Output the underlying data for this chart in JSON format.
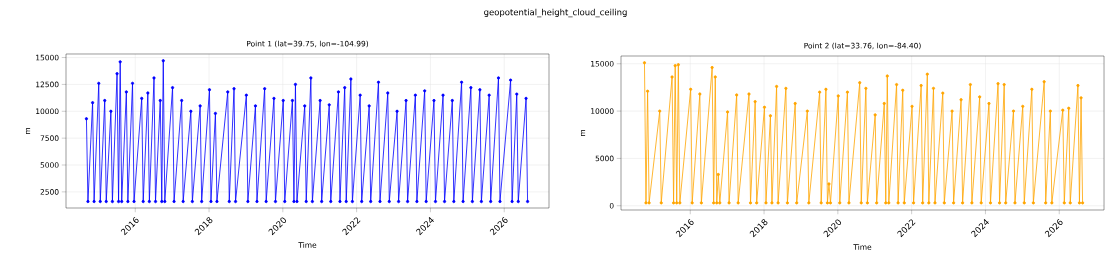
{
  "chart_data": [
    {
      "type": "line",
      "title": "Point 1 (lat=39.75, lon=-104.99)",
      "xlabel": "Time",
      "ylabel": "m",
      "annotations": [
        "geopotential_height_cloud_ceiling"
      ],
      "marker": "circle",
      "grid": true,
      "xlim": [
        "2014-02-15",
        "2027-03-20"
      ],
      "xticks": [
        "2016",
        "2018",
        "2020",
        "2022",
        "2024",
        "2026"
      ],
      "ylim": [
        1000,
        15330
      ],
      "yticks": [
        2500,
        5000,
        7500,
        10000,
        12500,
        15000
      ],
      "series": [
        {
          "color": "#0000ff",
          "x": [
            "2014-09-05",
            "2014-09-20",
            "2014-11-05",
            "2014-11-20",
            "2015-01-05",
            "2015-01-20",
            "2015-03-05",
            "2015-03-20",
            "2015-05-05",
            "2015-05-20",
            "2015-07-05",
            "2015-07-20",
            "2015-08-05",
            "2015-08-20",
            "2015-10-05",
            "2015-10-20",
            "2015-12-05",
            "2015-12-20",
            "2016-03-05",
            "2016-03-20",
            "2016-05-05",
            "2016-05-20",
            "2016-07-05",
            "2016-07-20",
            "2016-09-05",
            "2016-09-20",
            "2016-10-05",
            "2016-10-20",
            "2017-01-05",
            "2017-01-20",
            "2017-04-05",
            "2017-04-20",
            "2017-07-05",
            "2017-07-20",
            "2017-10-05",
            "2017-10-20",
            "2018-01-05",
            "2018-01-20",
            "2018-03-05",
            "2018-03-20",
            "2018-07-05",
            "2018-07-20",
            "2018-09-05",
            "2018-09-20",
            "2019-01-05",
            "2019-01-20",
            "2019-04-05",
            "2019-04-20",
            "2019-07-05",
            "2019-07-20",
            "2019-10-05",
            "2019-10-20",
            "2020-01-05",
            "2020-01-20",
            "2020-04-05",
            "2020-04-20",
            "2020-05-05",
            "2020-05-20",
            "2020-08-05",
            "2020-08-20",
            "2020-10-05",
            "2020-10-20",
            "2021-01-05",
            "2021-01-20",
            "2021-04-05",
            "2021-04-20",
            "2021-07-05",
            "2021-07-20",
            "2021-09-05",
            "2021-09-20",
            "2021-11-05",
            "2021-11-20",
            "2022-02-05",
            "2022-02-20",
            "2022-05-05",
            "2022-05-20",
            "2022-08-05",
            "2022-08-20",
            "2022-11-05",
            "2022-11-20",
            "2023-02-05",
            "2023-02-20",
            "2023-05-05",
            "2023-05-20",
            "2023-08-05",
            "2023-08-20",
            "2023-11-05",
            "2023-11-20",
            "2024-02-05",
            "2024-02-20",
            "2024-05-05",
            "2024-05-20",
            "2024-08-05",
            "2024-08-20",
            "2024-11-05",
            "2024-11-20",
            "2025-02-05",
            "2025-02-20",
            "2025-05-05",
            "2025-05-20",
            "2025-08-05",
            "2025-08-20",
            "2025-11-05",
            "2025-11-20",
            "2026-03-05",
            "2026-03-20",
            "2026-05-05",
            "2026-05-20",
            "2026-08-05",
            "2026-08-20"
          ],
          "values": [
            9300,
            1600,
            10800,
            1600,
            12600,
            1600,
            11000,
            1600,
            10000,
            1600,
            13500,
            1600,
            14600,
            1600,
            11800,
            1600,
            12600,
            1600,
            11200,
            1600,
            11700,
            1600,
            13100,
            1600,
            11000,
            1600,
            14700,
            1600,
            12200,
            1600,
            11000,
            1600,
            10000,
            1600,
            10500,
            1600,
            12000,
            1600,
            9800,
            1600,
            11800,
            1600,
            12100,
            1600,
            11500,
            1600,
            10500,
            1600,
            12100,
            1600,
            11200,
            1600,
            11000,
            1600,
            11000,
            1600,
            12500,
            1600,
            10500,
            1600,
            13100,
            1600,
            11000,
            1600,
            10600,
            1600,
            11800,
            1600,
            12200,
            1600,
            13000,
            1600,
            11500,
            1600,
            10500,
            1600,
            12700,
            1600,
            11700,
            1600,
            10000,
            1600,
            11000,
            1600,
            11500,
            1600,
            11900,
            1600,
            11000,
            1600,
            11500,
            1600,
            11000,
            1600,
            12700,
            1600,
            12200,
            1600,
            12000,
            1600,
            11500,
            1600,
            13100,
            1600,
            12900,
            1600,
            11600,
            1600,
            11200,
            1600
          ]
        }
      ]
    },
    {
      "type": "line",
      "title": "Point 2 (lat=33.76, lon=-84.40)",
      "xlabel": "Time",
      "ylabel": "m",
      "marker": "circle",
      "grid": true,
      "xlim": [
        "2014-02-15",
        "2027-03-20"
      ],
      "xticks": [
        "2016",
        "2018",
        "2020",
        "2022",
        "2024",
        "2026"
      ],
      "ylim": [
        -450,
        15820
      ],
      "yticks": [
        0,
        5000,
        10000,
        15000
      ],
      "series": [
        {
          "color": "#ffa500",
          "x": [
            "2014-10-05",
            "2014-10-20",
            "2014-11-05",
            "2014-11-20",
            "2015-03-05",
            "2015-03-20",
            "2015-07-05",
            "2015-07-20",
            "2015-08-05",
            "2015-08-20",
            "2015-09-05",
            "2015-09-20",
            "2016-01-05",
            "2016-01-20",
            "2016-04-05",
            "2016-04-20",
            "2016-08-05",
            "2016-08-20",
            "2016-09-05",
            "2016-09-20",
            "2016-10-05",
            "2016-10-20",
            "2017-01-05",
            "2017-01-20",
            "2017-04-05",
            "2017-04-20",
            "2017-08-05",
            "2017-08-20",
            "2017-10-05",
            "2017-10-20",
            "2018-01-05",
            "2018-01-20",
            "2018-03-05",
            "2018-03-20",
            "2018-05-05",
            "2018-05-20",
            "2018-08-05",
            "2018-08-20",
            "2018-11-05",
            "2018-11-20",
            "2019-03-05",
            "2019-03-20",
            "2019-07-05",
            "2019-07-20",
            "2019-09-05",
            "2019-09-20",
            "2019-10-05",
            "2019-10-20",
            "2020-01-05",
            "2020-01-20",
            "2020-04-05",
            "2020-04-20",
            "2020-08-05",
            "2020-08-20",
            "2020-10-05",
            "2020-10-20",
            "2021-01-05",
            "2021-01-20",
            "2021-04-05",
            "2021-04-20",
            "2021-05-05",
            "2021-05-20",
            "2021-08-05",
            "2021-08-20",
            "2021-10-05",
            "2021-10-20",
            "2022-01-05",
            "2022-01-20",
            "2022-04-05",
            "2022-04-20",
            "2022-06-05",
            "2022-06-20",
            "2022-08-05",
            "2022-08-20",
            "2022-11-05",
            "2022-11-20",
            "2023-02-05",
            "2023-02-20",
            "2023-05-05",
            "2023-05-20",
            "2023-08-05",
            "2023-08-20",
            "2023-11-05",
            "2023-11-20",
            "2024-02-05",
            "2024-02-20",
            "2024-05-05",
            "2024-05-20",
            "2024-07-05",
            "2024-07-20",
            "2024-10-05",
            "2024-10-20",
            "2025-01-05",
            "2025-01-20",
            "2025-04-05",
            "2025-04-20",
            "2025-08-05",
            "2025-08-20",
            "2025-10-05",
            "2025-10-20",
            "2026-02-05",
            "2026-02-20",
            "2026-04-05",
            "2026-04-20",
            "2026-07-05",
            "2026-07-20",
            "2026-08-05",
            "2026-08-20"
          ],
          "values": [
            15100,
            300,
            12100,
            300,
            10000,
            300,
            13600,
            300,
            14800,
            300,
            14900,
            300,
            12300,
            300,
            11800,
            300,
            14600,
            300,
            13600,
            300,
            3300,
            300,
            9900,
            300,
            11700,
            300,
            11800,
            300,
            11000,
            300,
            10400,
            300,
            9500,
            300,
            12600,
            300,
            12400,
            300,
            10800,
            300,
            10000,
            300,
            12000,
            300,
            12300,
            300,
            2300,
            300,
            11600,
            300,
            12000,
            300,
            13000,
            300,
            12400,
            300,
            9600,
            300,
            10800,
            300,
            13700,
            300,
            12800,
            300,
            12200,
            300,
            10500,
            300,
            12700,
            300,
            13900,
            300,
            12400,
            300,
            11900,
            300,
            10000,
            300,
            11200,
            300,
            12800,
            300,
            11500,
            300,
            10800,
            300,
            12900,
            300,
            12800,
            300,
            10000,
            300,
            10500,
            300,
            12300,
            300,
            13100,
            300,
            10000,
            300,
            10100,
            300,
            10300,
            300,
            12700,
            300,
            11400,
            300
          ]
        }
      ]
    }
  ]
}
